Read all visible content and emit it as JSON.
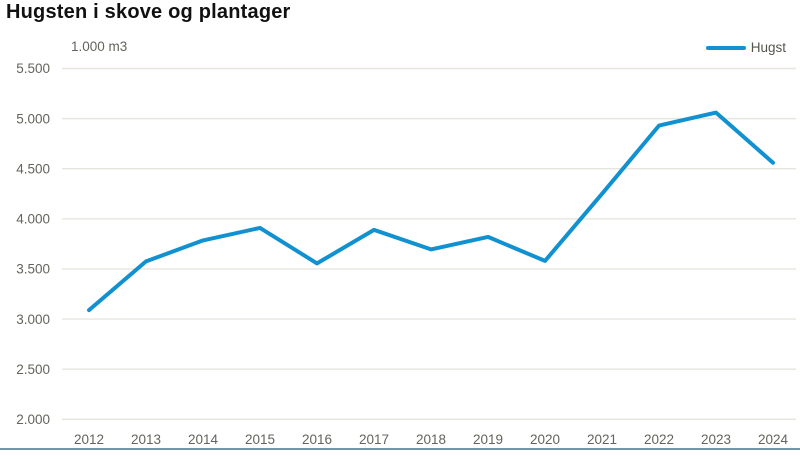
{
  "title": "Hugsten i skove og plantager",
  "unit_label": "1.000 m3",
  "legend": {
    "label": "Hugst"
  },
  "colors": {
    "line": "#1191d0",
    "grid": "#e7e5df",
    "tick_text": "#64645c",
    "legend_text": "#55554f",
    "title_text": "#111111",
    "bottom_border": "#7495a5"
  },
  "chart_data": {
    "type": "line",
    "title": "Hugsten i skove og plantager",
    "ylabel": "1.000 m3",
    "x": [
      "2012",
      "2013",
      "2014",
      "2015",
      "2016",
      "2017",
      "2018",
      "2019",
      "2020",
      "2021",
      "2022",
      "2023",
      "2024"
    ],
    "series": [
      {
        "name": "Hugst",
        "color": "#1191d0",
        "values": [
          3090,
          3575,
          3785,
          3910,
          3555,
          3890,
          3695,
          3820,
          3580,
          4250,
          4930,
          5060,
          4560
        ]
      }
    ],
    "ylim": [
      2000,
      5500
    ],
    "yticks": [
      2000,
      2500,
      3000,
      3500,
      4000,
      4500,
      5000,
      5500
    ],
    "ytick_labels": [
      "2.000",
      "2.500",
      "3.000",
      "3.500",
      "4.000",
      "4.500",
      "5.000",
      "5.500"
    ],
    "grid": true,
    "legend_position": "top-right"
  }
}
